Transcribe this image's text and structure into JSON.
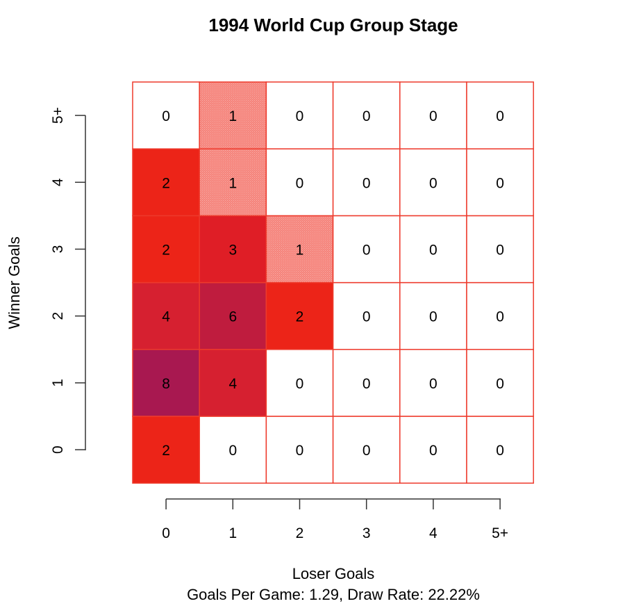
{
  "chart_data": {
    "type": "heatmap",
    "title": "1994 World Cup Group Stage",
    "xlabel": "Loser Goals",
    "ylabel": "Winner Goals",
    "subtitle": "Goals Per Game: 1.29, Draw Rate: 22.22%",
    "x_categories": [
      "0",
      "1",
      "2",
      "3",
      "4",
      "5+"
    ],
    "y_categories": [
      "0",
      "1",
      "2",
      "3",
      "4",
      "5+"
    ],
    "values": [
      [
        2,
        0,
        0,
        0,
        0,
        0
      ],
      [
        8,
        4,
        0,
        0,
        0,
        0
      ],
      [
        4,
        6,
        2,
        0,
        0,
        0
      ],
      [
        2,
        3,
        1,
        0,
        0,
        0
      ],
      [
        2,
        1,
        0,
        0,
        0,
        0
      ],
      [
        0,
        1,
        0,
        0,
        0,
        0
      ]
    ],
    "grid": true,
    "colors": {
      "border": "#ee3a2c",
      "zero": "#ffffff",
      "one": "#f5827a",
      "two": "#ec2418",
      "three": "#df1e26",
      "four": "#d62030",
      "six": "#bf1c3e",
      "eight": "#a81850"
    }
  }
}
